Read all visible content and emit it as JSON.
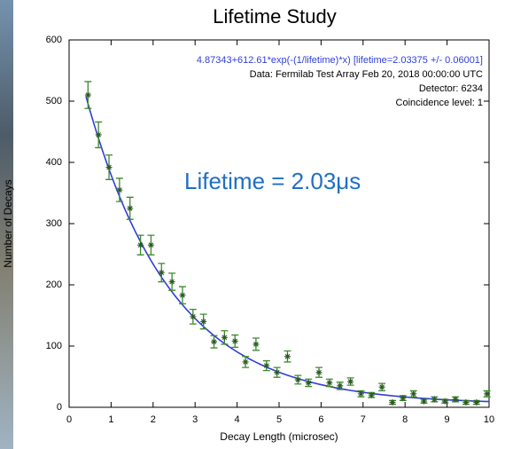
{
  "chart_data": {
    "type": "scatter",
    "title": "Lifetime Study",
    "x_label": "Decay Length (microsec)",
    "y_label": "Number of Decays",
    "annotations": [
      {
        "text": "4.87343+612.61*exp(-(1/lifetime)*x) [lifetime=2.03375 +/- 0.06001]",
        "color": "#2f3fd8"
      },
      {
        "text": "Data: Fermilab Test Array Feb 20, 2018 00:00:00 UTC",
        "color": "#000000"
      },
      {
        "text": "Detector: 6234",
        "color": "#000000"
      },
      {
        "text": "Coincidence level: 1",
        "color": "#000000"
      }
    ],
    "highlight": {
      "text": "Lifetime = 2.03μs",
      "color": "#1f6fc4"
    },
    "xlim": [
      0,
      10
    ],
    "ylim": [
      0,
      600
    ],
    "xticks": [
      0,
      1,
      2,
      3,
      4,
      5,
      6,
      7,
      8,
      9,
      10
    ],
    "yticks": [
      0,
      100,
      200,
      300,
      400,
      500,
      600
    ],
    "fit": {
      "offset": 4.87343,
      "amplitude": 612.61,
      "lifetime": 2.03375,
      "color": "#2f3fd8",
      "xlim": [
        0.4,
        10
      ]
    },
    "series": [
      {
        "color": "#3d8a2c",
        "x": [
          0.45,
          0.7,
          0.95,
          1.2,
          1.45,
          1.7,
          1.95,
          2.2,
          2.45,
          2.7,
          2.95,
          3.2,
          3.45,
          3.7,
          3.95,
          4.2,
          4.45,
          4.7,
          4.95,
          5.2,
          5.45,
          5.7,
          5.95,
          6.2,
          6.45,
          6.7,
          6.95,
          7.2,
          7.45,
          7.7,
          7.95,
          8.2,
          8.45,
          8.7,
          8.95,
          9.2,
          9.45,
          9.7,
          9.95
        ],
        "values": [
          510,
          445,
          392,
          355,
          325,
          265,
          265,
          220,
          205,
          183,
          148,
          140,
          107,
          114,
          108,
          74,
          103,
          68,
          57,
          83,
          45,
          40,
          57,
          40,
          35,
          42,
          22,
          20,
          33,
          8,
          15,
          22,
          10,
          13,
          10,
          13,
          8,
          8,
          22
        ],
        "errors": [
          22,
          21,
          20,
          19,
          18,
          16,
          16,
          15,
          14,
          14,
          12,
          12,
          10,
          11,
          10,
          9,
          10,
          8,
          8,
          9,
          7,
          6,
          8,
          6,
          6,
          6,
          5,
          4,
          6,
          3,
          4,
          5,
          3,
          4,
          3,
          4,
          3,
          3,
          5
        ]
      }
    ]
  }
}
